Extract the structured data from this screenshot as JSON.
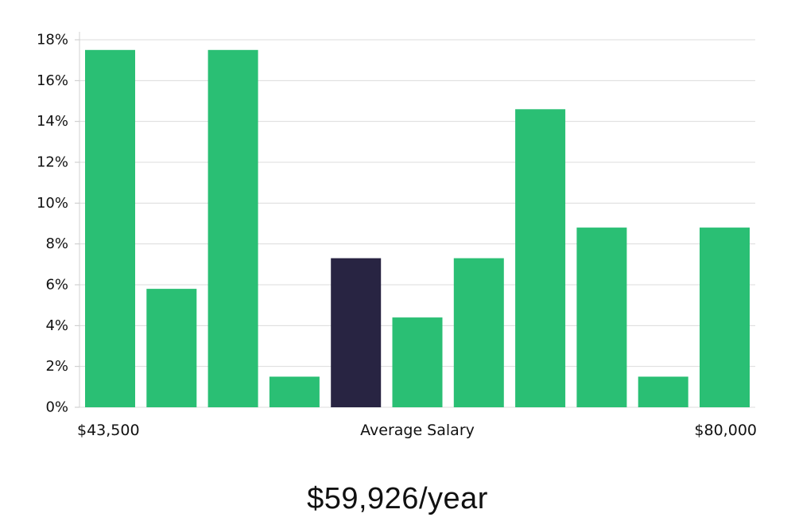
{
  "chart_data": {
    "type": "bar",
    "title": "",
    "xlabel": "Average Salary",
    "ylabel": "",
    "x_min_label": "$43,500",
    "x_max_label": "$80,000",
    "ylim": [
      0,
      18
    ],
    "y_ticks": [
      0,
      2,
      4,
      6,
      8,
      10,
      12,
      14,
      16,
      18
    ],
    "y_tick_labels": [
      "0%",
      "2%",
      "4%",
      "6%",
      "8%",
      "10%",
      "12%",
      "14%",
      "16%",
      "18%"
    ],
    "grid": true,
    "values": [
      17.5,
      5.8,
      17.5,
      1.5,
      7.3,
      4.4,
      7.3,
      14.6,
      8.8,
      1.5,
      8.8
    ],
    "highlight_index": 4,
    "bar_color": "#2abf74",
    "highlight_color": "#282442",
    "grid_color": "#dcdcdc"
  },
  "salary_text": "$59,926/year"
}
